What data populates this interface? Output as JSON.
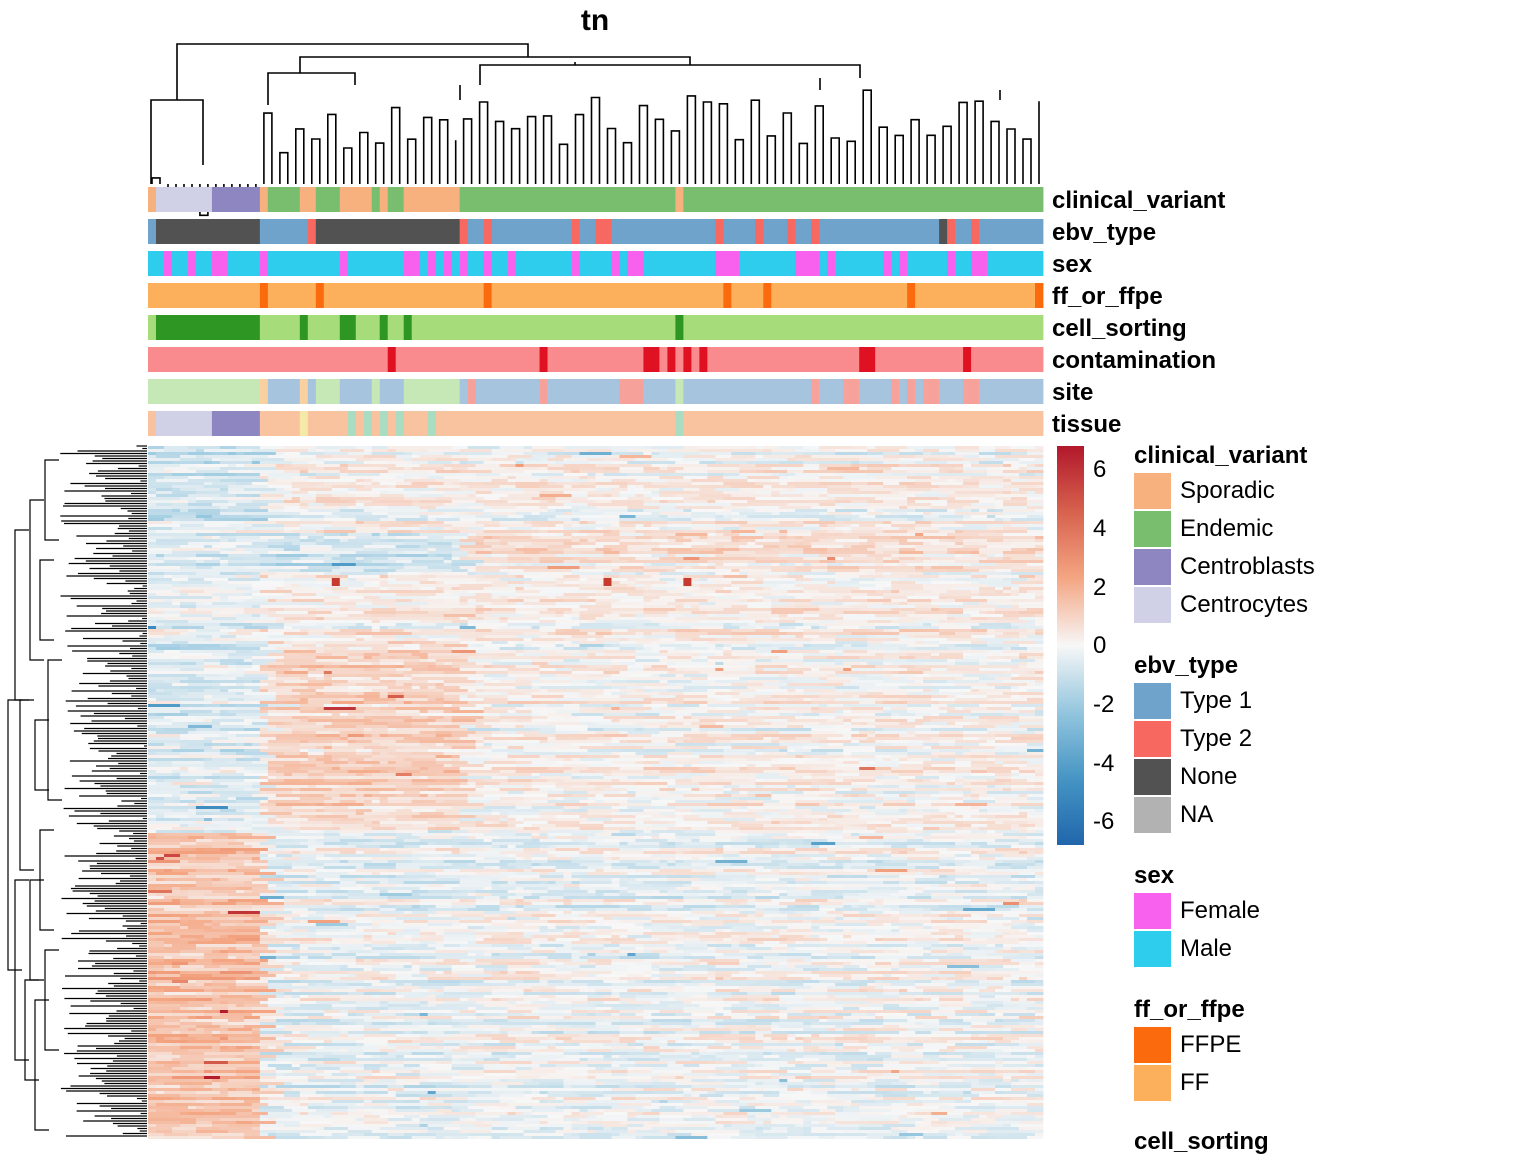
{
  "title": "tn",
  "annotation_tracks": [
    "clinical_variant",
    "ebv_type",
    "sex",
    "ff_or_ffpe",
    "cell_sorting",
    "contamination",
    "site",
    "tissue"
  ],
  "colorbar": {
    "ticks": [
      "6",
      "4",
      "2",
      "0",
      "-2",
      "-4",
      "-6"
    ],
    "colors": [
      "#b2182b",
      "#d6604d",
      "#f4a582",
      "#f7f7f7",
      "#92c5de",
      "#4393c3",
      "#2166ac"
    ]
  },
  "legends": [
    {
      "title": "clinical_variant",
      "items": [
        {
          "label": "Sporadic",
          "color": "#f7b17e"
        },
        {
          "label": "Endemic",
          "color": "#79bd6f"
        },
        {
          "label": "Centroblasts",
          "color": "#8e86c1"
        },
        {
          "label": "Centrocytes",
          "color": "#d0d0e6"
        }
      ]
    },
    {
      "title": "ebv_type",
      "items": [
        {
          "label": "Type 1",
          "color": "#6fa3cc"
        },
        {
          "label": "Type 2",
          "color": "#f76860"
        },
        {
          "label": "None",
          "color": "#525252"
        },
        {
          "label": "NA",
          "color": "#b2b2b2"
        }
      ]
    },
    {
      "title": "sex",
      "items": [
        {
          "label": "Female",
          "color": "#f761ee"
        },
        {
          "label": "Male",
          "color": "#2ecdee"
        }
      ]
    },
    {
      "title": "ff_or_ffpe",
      "items": [
        {
          "label": "FFPE",
          "color": "#fc6a0e"
        },
        {
          "label": "FF",
          "color": "#fcb05c"
        }
      ]
    },
    {
      "title": "cell_sorting",
      "items": []
    }
  ],
  "chart_data": {
    "type": "heatmap",
    "title": "tn",
    "value_range": [
      -6.5,
      6.5
    ],
    "column_annotations": [
      "clinical_variant",
      "ebv_type",
      "sex",
      "ff_or_ffpe",
      "cell_sorting",
      "contamination",
      "site",
      "tissue"
    ],
    "row_dendrogram": true,
    "column_dendrogram": true
  }
}
